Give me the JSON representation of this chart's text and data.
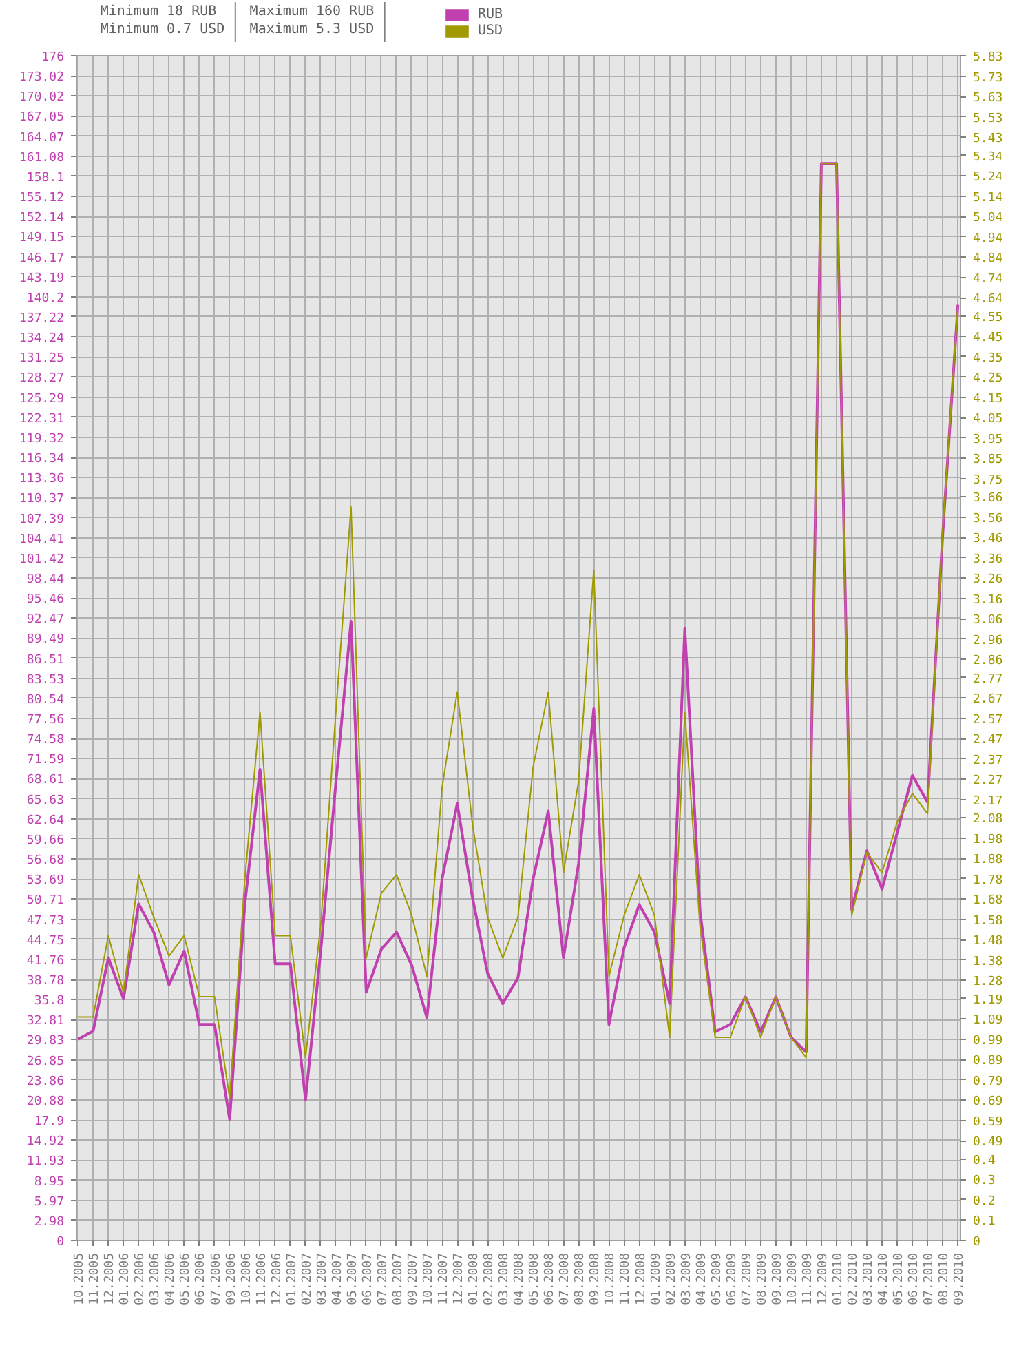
{
  "chart_data": {
    "type": "line",
    "categories": [
      "10.2005",
      "11.2005",
      "12.2005",
      "01.2006",
      "02.2006",
      "03.2006",
      "04.2006",
      "05.2006",
      "06.2006",
      "07.2006",
      "09.2006",
      "10.2006",
      "11.2006",
      "12.2006",
      "01.2007",
      "02.2007",
      "03.2007",
      "04.2007",
      "05.2007",
      "06.2007",
      "07.2007",
      "08.2007",
      "09.2007",
      "10.2007",
      "11.2007",
      "12.2007",
      "01.2008",
      "02.2008",
      "03.2008",
      "04.2008",
      "05.2008",
      "06.2008",
      "07.2008",
      "08.2008",
      "09.2008",
      "10.2008",
      "11.2008",
      "12.2008",
      "01.2009",
      "02.2009",
      "03.2009",
      "04.2009",
      "05.2009",
      "06.2009",
      "07.2009",
      "08.2009",
      "09.2009",
      "10.2009",
      "11.2009",
      "12.2009",
      "01.2010",
      "02.2010",
      "03.2010",
      "04.2010",
      "05.2010",
      "06.2010",
      "07.2010",
      "08.2010",
      "09.2010"
    ],
    "series": [
      {
        "name": "RUB",
        "color": "#c040b0",
        "values": [
          29.9,
          31.1,
          42.0,
          35.9,
          50.0,
          45.8,
          38.0,
          43.0,
          32.1,
          32.1,
          18.0,
          50.0,
          70.0,
          41.1,
          41.1,
          20.9,
          43,
          68,
          92.0,
          36.9,
          43.3,
          45.8,
          40.9,
          33.1,
          53.7,
          64.9,
          51,
          39.7,
          35.2,
          39.0,
          53.7,
          63.8,
          42.0,
          56.0,
          79.0,
          32.1,
          43.5,
          49.9,
          45.8,
          35.2,
          90.9,
          49,
          31.0,
          32.1,
          36.2,
          31.0,
          36.2,
          30.2,
          28.0,
          160,
          160,
          49.2,
          57.9,
          52.2,
          60.6,
          69.1,
          65.1,
          105,
          139
        ]
      },
      {
        "name": "USD",
        "color": "#a09a00",
        "axis": "y2",
        "values": [
          1.1,
          1.1,
          1.5,
          1.22,
          1.8,
          1.59,
          1.4,
          1.5,
          1.2,
          1.2,
          0.7,
          1.78,
          2.6,
          1.5,
          1.5,
          0.9,
          1.55,
          2.6,
          3.61,
          1.39,
          1.71,
          1.8,
          1.6,
          1.3,
          2.23,
          2.7,
          2.05,
          1.59,
          1.39,
          1.59,
          2.33,
          2.7,
          1.81,
          2.26,
          3.3,
          1.3,
          1.6,
          1.8,
          1.6,
          1.0,
          2.6,
          1.55,
          1.0,
          1.0,
          1.2,
          1.0,
          1.2,
          1.0,
          0.9,
          5.3,
          5.3,
          1.6,
          1.91,
          1.81,
          2.06,
          2.2,
          2.1,
          3.5,
          4.6
        ]
      }
    ],
    "ylim": [
      0,
      176
    ],
    "yticks": [
      0,
      2.98,
      5.97,
      8.95,
      11.93,
      14.92,
      17.9,
      20.88,
      23.86,
      26.85,
      29.83,
      32.81,
      35.8,
      38.78,
      41.76,
      44.75,
      47.73,
      50.71,
      53.69,
      56.68,
      59.66,
      62.64,
      65.63,
      68.61,
      71.59,
      74.58,
      77.56,
      80.54,
      83.53,
      86.51,
      89.49,
      92.47,
      95.46,
      98.44,
      101.42,
      104.41,
      107.39,
      110.37,
      113.36,
      116.34,
      119.32,
      122.31,
      125.29,
      128.27,
      131.25,
      134.24,
      137.22,
      140.2,
      143.19,
      146.17,
      149.15,
      152.14,
      155.12,
      158.1,
      161.08,
      164.07,
      167.05,
      170.02,
      173.02,
      176
    ],
    "y2lim": [
      0,
      5.83
    ],
    "y2ticks": [
      0,
      0.1,
      0.2,
      0.3,
      0.4,
      0.49,
      0.59,
      0.69,
      0.79,
      0.89,
      0.99,
      1.09,
      1.19,
      1.28,
      1.38,
      1.48,
      1.58,
      1.68,
      1.78,
      1.88,
      1.98,
      2.08,
      2.17,
      2.27,
      2.37,
      2.47,
      2.57,
      2.67,
      2.77,
      2.86,
      2.96,
      3.06,
      3.16,
      3.26,
      3.36,
      3.46,
      3.56,
      3.66,
      3.75,
      3.85,
      3.95,
      4.05,
      4.15,
      4.25,
      4.35,
      4.45,
      4.55,
      4.64,
      4.74,
      4.84,
      4.94,
      5.04,
      5.14,
      5.24,
      5.34,
      5.43,
      5.53,
      5.63,
      5.73,
      5.83
    ],
    "annotations": [
      "Minimum 18 RUB",
      "Minimum 0.7 USD",
      "Maximum 160 RUB",
      "Maximum 5.3 USD"
    ],
    "grid": true,
    "legend": "top left"
  }
}
